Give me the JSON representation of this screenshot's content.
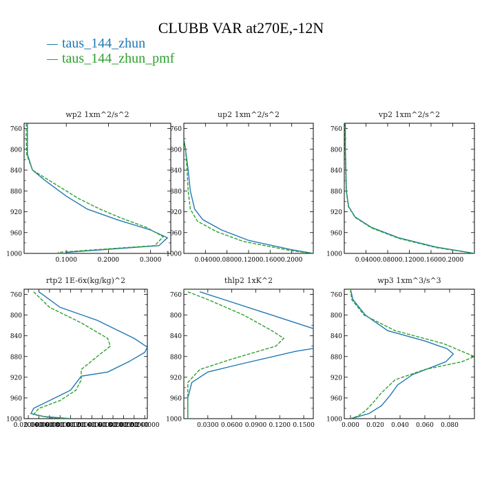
{
  "title": "CLUBB VAR at270E,-12N",
  "legend": [
    {
      "label": "taus_144_zhun",
      "color": "#1f77b4",
      "dash": false
    },
    {
      "label": "taus_144_zhun_pmf",
      "color": "#2ca02c",
      "dash": true
    }
  ],
  "chart_data": [
    {
      "type": "line",
      "title": "wp2  1xm^2/s^2",
      "ylim": [
        1000,
        750
      ],
      "xlim": [
        0,
        0.348
      ],
      "xticks": [
        0.1,
        0.2,
        0.3
      ],
      "xtick_labels": [
        "0.1000",
        "0.2000",
        "0.3000"
      ],
      "yticks": [
        760,
        800,
        840,
        880,
        920,
        960,
        1000
      ],
      "ytick_labels": [
        "760",
        "800",
        "840",
        "880",
        "920",
        "960",
        "1000"
      ],
      "series": [
        {
          "name": "taus_144_zhun",
          "color": "#1f77b4",
          "dash": false,
          "points": [
            [
              0.008,
              750
            ],
            [
              0.008,
              780
            ],
            [
              0.008,
              810
            ],
            [
              0.02,
              840
            ],
            [
              0.05,
              860
            ],
            [
              0.1,
              890
            ],
            [
              0.15,
              915
            ],
            [
              0.22,
              935
            ],
            [
              0.3,
              955
            ],
            [
              0.34,
              970
            ],
            [
              0.32,
              985
            ],
            [
              0.1,
              998
            ]
          ]
        },
        {
          "name": "taus_144_zhun_pmf",
          "color": "#2ca02c",
          "dash": true,
          "points": [
            [
              0.005,
              750
            ],
            [
              0.005,
              780
            ],
            [
              0.006,
              810
            ],
            [
              0.02,
              840
            ],
            [
              0.07,
              865
            ],
            [
              0.13,
              895
            ],
            [
              0.18,
              915
            ],
            [
              0.23,
              932
            ],
            [
              0.29,
              950
            ],
            [
              0.33,
              968
            ],
            [
              0.31,
              985
            ],
            [
              0.08,
              998
            ]
          ]
        }
      ]
    },
    {
      "type": "line",
      "title": "up2  1xm^2/s^2",
      "ylim": [
        1000,
        750
      ],
      "xlim": [
        0,
        0.24
      ],
      "xticks": [
        0.04,
        0.08,
        0.12,
        0.16,
        0.2
      ],
      "xtick_labels": [
        "0.0400",
        "0.0800",
        "0.1200",
        "0.1600",
        "0.2000"
      ],
      "yticks": [
        760,
        800,
        840,
        880,
        920,
        960,
        1000
      ],
      "ytick_labels": [
        "760",
        "800",
        "840",
        "880",
        "920",
        "960",
        "1000"
      ],
      "series": [
        {
          "name": "taus_144_zhun",
          "color": "#1f77b4",
          "dash": false,
          "points": [
            [
              0.0,
              780
            ],
            [
              0.003,
              800
            ],
            [
              0.008,
              840
            ],
            [
              0.012,
              880
            ],
            [
              0.02,
              915
            ],
            [
              0.035,
              935
            ],
            [
              0.07,
              955
            ],
            [
              0.12,
              975
            ],
            [
              0.2,
              993
            ],
            [
              0.24,
              1000
            ]
          ]
        },
        {
          "name": "taus_144_zhun_pmf",
          "color": "#2ca02c",
          "dash": true,
          "points": [
            [
              0.0,
              780
            ],
            [
              0.003,
              800
            ],
            [
              0.006,
              840
            ],
            [
              0.008,
              880
            ],
            [
              0.012,
              915
            ],
            [
              0.025,
              938
            ],
            [
              0.06,
              958
            ],
            [
              0.11,
              977
            ],
            [
              0.2,
              995
            ],
            [
              0.24,
              1000
            ]
          ]
        }
      ]
    },
    {
      "type": "line",
      "title": "vp2  1xm^2/s^2",
      "ylim": [
        1000,
        750
      ],
      "xlim": [
        0,
        0.24
      ],
      "xticks": [
        0.04,
        0.08,
        0.12,
        0.16,
        0.2
      ],
      "xtick_labels": [
        "0.0400",
        "0.0800",
        "0.1200",
        "0.1600",
        "0.2000"
      ],
      "yticks": [
        760,
        800,
        840,
        880,
        920,
        960,
        1000
      ],
      "ytick_labels": [
        "760",
        "800",
        "840",
        "880",
        "920",
        "960",
        "1000"
      ],
      "series": [
        {
          "name": "taus_144_zhun",
          "color": "#1f77b4",
          "dash": false,
          "points": [
            [
              0.002,
              750
            ],
            [
              0.002,
              800
            ],
            [
              0.003,
              840
            ],
            [
              0.004,
              880
            ],
            [
              0.008,
              910
            ],
            [
              0.02,
              930
            ],
            [
              0.05,
              950
            ],
            [
              0.1,
              970
            ],
            [
              0.17,
              988
            ],
            [
              0.24,
              1000
            ]
          ]
        },
        {
          "name": "taus_144_zhun_pmf",
          "color": "#2ca02c",
          "dash": true,
          "points": [
            [
              0.0015,
              750
            ],
            [
              0.0015,
              800
            ],
            [
              0.0025,
              840
            ],
            [
              0.0035,
              880
            ],
            [
              0.0075,
              910
            ],
            [
              0.02,
              931
            ],
            [
              0.05,
              951
            ],
            [
              0.1,
              971
            ],
            [
              0.17,
              989
            ],
            [
              0.24,
              1000
            ]
          ]
        }
      ]
    },
    {
      "type": "line",
      "title": "rtp2  1E-6x(kg/kg)^2",
      "ylim": [
        1000,
        750
      ],
      "xlim": [
        0.012,
        0.245
      ],
      "xticks": [
        0.02,
        0.04,
        0.06,
        0.08,
        0.1,
        0.12,
        0.14,
        0.16,
        0.18,
        0.2,
        0.22,
        0.24
      ],
      "xtick_labels": [
        "0.020000",
        "0.040000",
        "0.060000",
        "0.080000",
        "0.100000",
        "0.120000",
        "0.140000",
        "0.160000",
        "0.180000",
        "0.200000",
        "0.220000",
        "0.240000"
      ],
      "yticks": [
        760,
        800,
        840,
        880,
        920,
        960,
        1000
      ],
      "ytick_labels": [
        "760",
        "800",
        "840",
        "880",
        "920",
        "960",
        "1000"
      ],
      "series": [
        {
          "name": "taus_144_zhun",
          "color": "#1f77b4",
          "dash": false,
          "points": [
            [
              0.04,
              755
            ],
            [
              0.08,
              785
            ],
            [
              0.15,
              810
            ],
            [
              0.22,
              845
            ],
            [
              0.245,
              862
            ],
            [
              0.24,
              872
            ],
            [
              0.21,
              890
            ],
            [
              0.17,
              910
            ],
            [
              0.12,
              918
            ],
            [
              0.1,
              945
            ],
            [
              0.06,
              965
            ],
            [
              0.03,
              980
            ],
            [
              0.025,
              990
            ],
            [
              0.05,
              996
            ],
            [
              0.1,
              1000
            ]
          ]
        },
        {
          "name": "taus_144_zhun_pmf",
          "color": "#2ca02c",
          "dash": true,
          "points": [
            [
              0.03,
              755
            ],
            [
              0.06,
              785
            ],
            [
              0.12,
              815
            ],
            [
              0.17,
              845
            ],
            [
              0.175,
              860
            ],
            [
              0.15,
              880
            ],
            [
              0.12,
              905
            ],
            [
              0.12,
              925
            ],
            [
              0.11,
              945
            ],
            [
              0.08,
              965
            ],
            [
              0.04,
              980
            ],
            [
              0.03,
              992
            ],
            [
              0.06,
              998
            ],
            [
              0.1,
              1000
            ]
          ]
        }
      ]
    },
    {
      "type": "line",
      "title": "thlp2  1xK^2",
      "ylim": [
        1000,
        750
      ],
      "xlim": [
        0,
        0.162
      ],
      "xticks": [
        0.03,
        0.06,
        0.09,
        0.12,
        0.15
      ],
      "xtick_labels": [
        "0.0300",
        "0.0600",
        "0.0900",
        "0.1200",
        "0.1500"
      ],
      "yticks": [
        760,
        800,
        840,
        880,
        920,
        960,
        1000
      ],
      "ytick_labels": [
        "760",
        "800",
        "840",
        "880",
        "920",
        "960",
        "1000"
      ],
      "series": [
        {
          "name": "taus_144_zhun",
          "color": "#1f77b4",
          "dash": false,
          "points": [
            [
              0.02,
              755
            ],
            [
              0.05,
              770
            ],
            [
              0.11,
              800
            ],
            [
              0.16,
              825
            ],
            [
              0.2,
              845
            ],
            [
              0.22,
              850
            ],
            [
              0.14,
              870
            ],
            [
              0.07,
              895
            ],
            [
              0.03,
              910
            ],
            [
              0.01,
              930
            ],
            [
              0.005,
              960
            ],
            [
              0.005,
              1000
            ]
          ]
        },
        {
          "name": "taus_144_zhun_pmf",
          "color": "#2ca02c",
          "dash": true,
          "points": [
            [
              0.005,
              755
            ],
            [
              0.03,
              770
            ],
            [
              0.075,
              800
            ],
            [
              0.11,
              830
            ],
            [
              0.125,
              845
            ],
            [
              0.115,
              860
            ],
            [
              0.06,
              885
            ],
            [
              0.02,
              905
            ],
            [
              0.005,
              930
            ],
            [
              0.005,
              960
            ],
            [
              0.005,
              1000
            ]
          ]
        }
      ]
    },
    {
      "type": "line",
      "title": "wp3  1xm^3/s^3",
      "ylim": [
        1000,
        750
      ],
      "xlim": [
        -0.005,
        0.1
      ],
      "xticks": [
        0,
        0.02,
        0.04,
        0.06,
        0.08
      ],
      "xtick_labels": [
        "0.000",
        "0.020",
        "0.040",
        "0.060",
        "0.080"
      ],
      "yticks": [
        760,
        800,
        840,
        880,
        920,
        960,
        1000
      ],
      "ytick_labels": [
        "760",
        "800",
        "840",
        "880",
        "920",
        "960",
        "1000"
      ],
      "series": [
        {
          "name": "taus_144_zhun",
          "color": "#1f77b4",
          "dash": false,
          "points": [
            [
              0,
              750
            ],
            [
              0.002,
              770
            ],
            [
              0.012,
              800
            ],
            [
              0.03,
              830
            ],
            [
              0.06,
              850
            ],
            [
              0.078,
              865
            ],
            [
              0.083,
              875
            ],
            [
              0.077,
              890
            ],
            [
              0.05,
              915
            ],
            [
              0.038,
              935
            ],
            [
              0.032,
              955
            ],
            [
              0.025,
              975
            ],
            [
              0.015,
              990
            ],
            [
              0.005,
              997
            ],
            [
              0,
              1000
            ]
          ]
        },
        {
          "name": "taus_144_zhun_pmf",
          "color": "#2ca02c",
          "dash": true,
          "points": [
            [
              0,
              750
            ],
            [
              0.001,
              770
            ],
            [
              0.011,
              800
            ],
            [
              0.036,
              830
            ],
            [
              0.075,
              855
            ],
            [
              0.1,
              880
            ],
            [
              0.09,
              890
            ],
            [
              0.06,
              905
            ],
            [
              0.036,
              925
            ],
            [
              0.025,
              950
            ],
            [
              0.018,
              970
            ],
            [
              0.012,
              985
            ],
            [
              0.006,
              995
            ],
            [
              0,
              1000
            ]
          ]
        }
      ]
    }
  ]
}
